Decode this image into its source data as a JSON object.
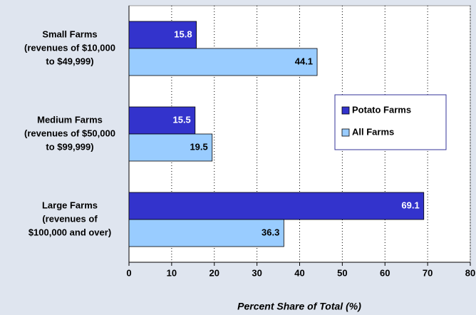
{
  "chart_data": {
    "type": "bar",
    "orientation": "horizontal",
    "categories": [
      [
        "Small Farms",
        "(revenues of $10,000",
        "to $49,999)"
      ],
      [
        "Medium Farms",
        "(revenues of $50,000",
        "to $99,999)"
      ],
      [
        "Large Farms",
        "(revenues of",
        "$100,000 and over)"
      ]
    ],
    "series": [
      {
        "name": "Potato Farms",
        "color": "#3333cc",
        "values": [
          15.8,
          15.5,
          69.1
        ]
      },
      {
        "name": "All Farms",
        "color": "#99ccff",
        "values": [
          44.1,
          19.5,
          36.3
        ]
      }
    ],
    "xlabel": "Percent Share of Total (%)",
    "xlim": [
      0,
      80
    ],
    "xticks": [
      0,
      10,
      20,
      30,
      40,
      50,
      60,
      70,
      80
    ],
    "grid": true,
    "legend": "right"
  }
}
